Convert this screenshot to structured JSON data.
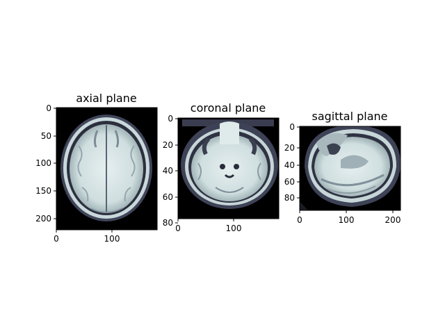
{
  "figure": {
    "panels": [
      {
        "title": "axial plane",
        "x_ticks": [
          "0",
          "100"
        ],
        "y_ticks": [
          "0",
          "50",
          "100",
          "150",
          "200"
        ]
      },
      {
        "title": "coronal plane",
        "x_ticks": [
          "0",
          "100"
        ],
        "y_ticks": [
          "0",
          "20",
          "40",
          "60",
          "80"
        ]
      },
      {
        "title": "sagittal plane",
        "x_ticks": [
          "0",
          "100",
          "200"
        ],
        "y_ticks": [
          "0",
          "20",
          "40",
          "60",
          "80"
        ]
      }
    ],
    "colors": {
      "background": "#000000",
      "tissue_light": "#dfecec",
      "tissue_mid": "#9fb2b6",
      "tissue_dark": "#2e3140"
    }
  }
}
